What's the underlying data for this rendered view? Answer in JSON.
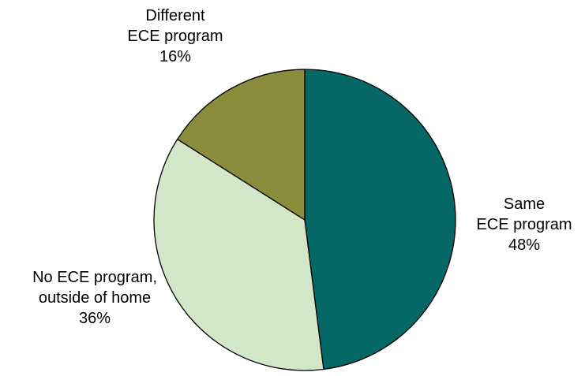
{
  "chart_data": {
    "type": "pie",
    "title": "",
    "start_angle_deg": 0,
    "direction": "clockwise",
    "slices": [
      {
        "label_lines": [
          "Same",
          "ECE program",
          "48%"
        ],
        "value": 48,
        "color": "#066767"
      },
      {
        "label_lines": [
          "No ECE program,",
          "outside of home",
          "36%"
        ],
        "value": 36,
        "color": "#d2e7c8"
      },
      {
        "label_lines": [
          "Different",
          "ECE program",
          "16%"
        ],
        "value": 16,
        "color": "#8b8b3c"
      }
    ],
    "legend": "none",
    "stroke_color": "#000000"
  }
}
